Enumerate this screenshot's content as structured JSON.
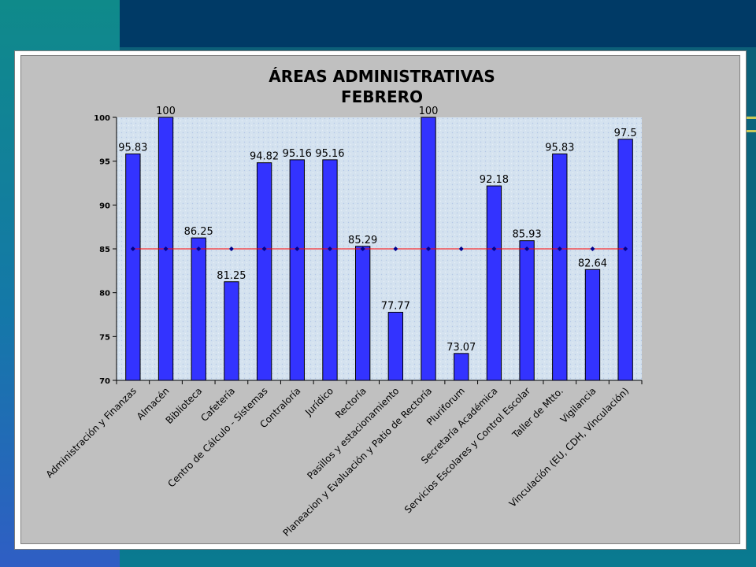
{
  "colors": {
    "bar": "#3333ff",
    "bar_stroke": "#000000",
    "reference_line": "#ff0000",
    "marker": "#00008b"
  },
  "chart_data": {
    "type": "bar",
    "title": [
      "ÁREAS ADMINISTRATIVAS",
      "FEBRERO"
    ],
    "categories": [
      "Administración y Finanzas",
      "Almacén",
      "Biblioteca",
      "Cafetería",
      "Centro de Cálculo - Sistemas",
      "Contraloría",
      "Jurídico",
      "Rectoría",
      "Pasillos y estacionamiento",
      "Planeacion y Evaluación y Patio de Rectoría",
      "Pluriforum",
      "Secretaría Académica",
      "Servicios Escolares y Control Escolar",
      "Taller de Mtto.",
      "Vigilancia",
      "Vinculación (EU, CDH, Vinculación)"
    ],
    "values": [
      95.83,
      100,
      86.25,
      81.25,
      94.82,
      95.16,
      95.16,
      85.29,
      77.77,
      100,
      73.07,
      92.18,
      85.93,
      95.83,
      82.64,
      97.5
    ],
    "data_labels": [
      "95.83",
      "100",
      "86.25",
      "81.25",
      "94.82",
      "95.16",
      "95.16",
      "85.29",
      "77.77",
      "100",
      "73.07",
      "92.18",
      "85.93",
      "95.83",
      "82.64",
      "97.5"
    ],
    "reference_line": {
      "value": 85,
      "markers": true
    },
    "ylim": [
      70,
      100
    ],
    "yticks": [
      70,
      75,
      80,
      85,
      90,
      95,
      100
    ],
    "grid": false,
    "legend": "none"
  }
}
